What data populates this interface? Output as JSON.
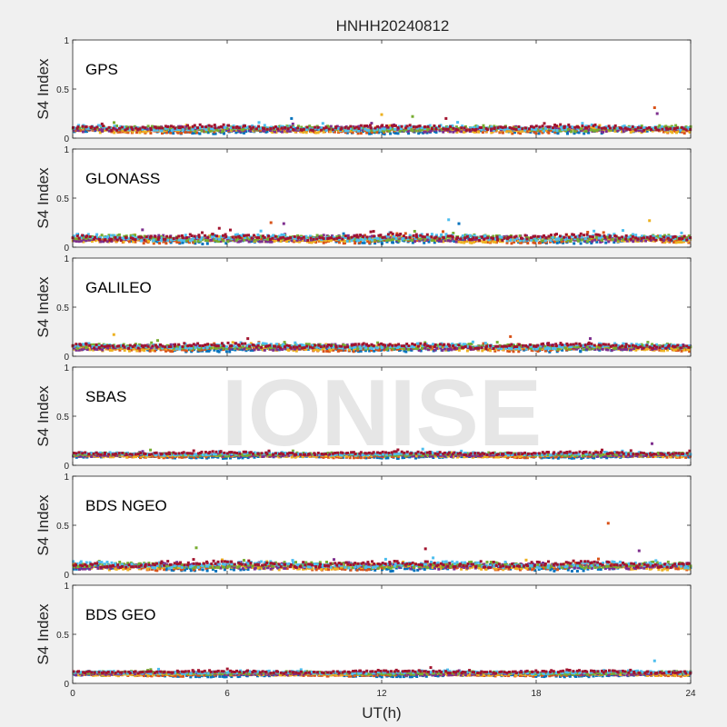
{
  "chart_data": {
    "type": "scatter",
    "title": "HNHH20240812",
    "xlabel": "UT(h)",
    "ylabel": "S4 Index",
    "xlim": [
      0,
      24
    ],
    "ylim": [
      0,
      1
    ],
    "x_ticks": [
      "0",
      "6",
      "12",
      "18",
      "24"
    ],
    "y_ticks": [
      "0",
      "0.5",
      "1"
    ],
    "watermark": "IONISE",
    "series_colors": [
      "#0072bd",
      "#d95319",
      "#edb120",
      "#7e2f8e",
      "#77ac30",
      "#4dbeee",
      "#a2142f"
    ],
    "panels": [
      {
        "label": "GPS",
        "base": 0.09,
        "spread": 0.035,
        "spikes": [
          [
            8.5,
            0.2
          ],
          [
            12.0,
            0.24
          ],
          [
            13.2,
            0.22
          ],
          [
            14.5,
            0.2
          ],
          [
            22.6,
            0.31
          ],
          [
            22.7,
            0.25
          ]
        ]
      },
      {
        "label": "GLONASS",
        "base": 0.085,
        "spread": 0.04,
        "spikes": [
          [
            7.7,
            0.25
          ],
          [
            8.2,
            0.24
          ],
          [
            14.6,
            0.28
          ],
          [
            15.0,
            0.24
          ],
          [
            22.4,
            0.27
          ]
        ]
      },
      {
        "label": "GALILEO",
        "base": 0.09,
        "spread": 0.035,
        "spikes": [
          [
            1.6,
            0.22
          ],
          [
            3.3,
            0.16
          ],
          [
            6.8,
            0.18
          ],
          [
            17.0,
            0.2
          ],
          [
            20.1,
            0.18
          ]
        ]
      },
      {
        "label": "SBAS",
        "base": 0.105,
        "spread": 0.02,
        "spikes": [
          [
            22.5,
            0.22
          ]
        ]
      },
      {
        "label": "BDS NGEO",
        "base": 0.085,
        "spread": 0.04,
        "spikes": [
          [
            4.8,
            0.27
          ],
          [
            13.7,
            0.26
          ],
          [
            20.8,
            0.52
          ],
          [
            22.0,
            0.24
          ]
        ]
      },
      {
        "label": "BDS GEO",
        "base": 0.1,
        "spread": 0.02,
        "spikes": [
          [
            22.6,
            0.23
          ]
        ]
      }
    ]
  }
}
